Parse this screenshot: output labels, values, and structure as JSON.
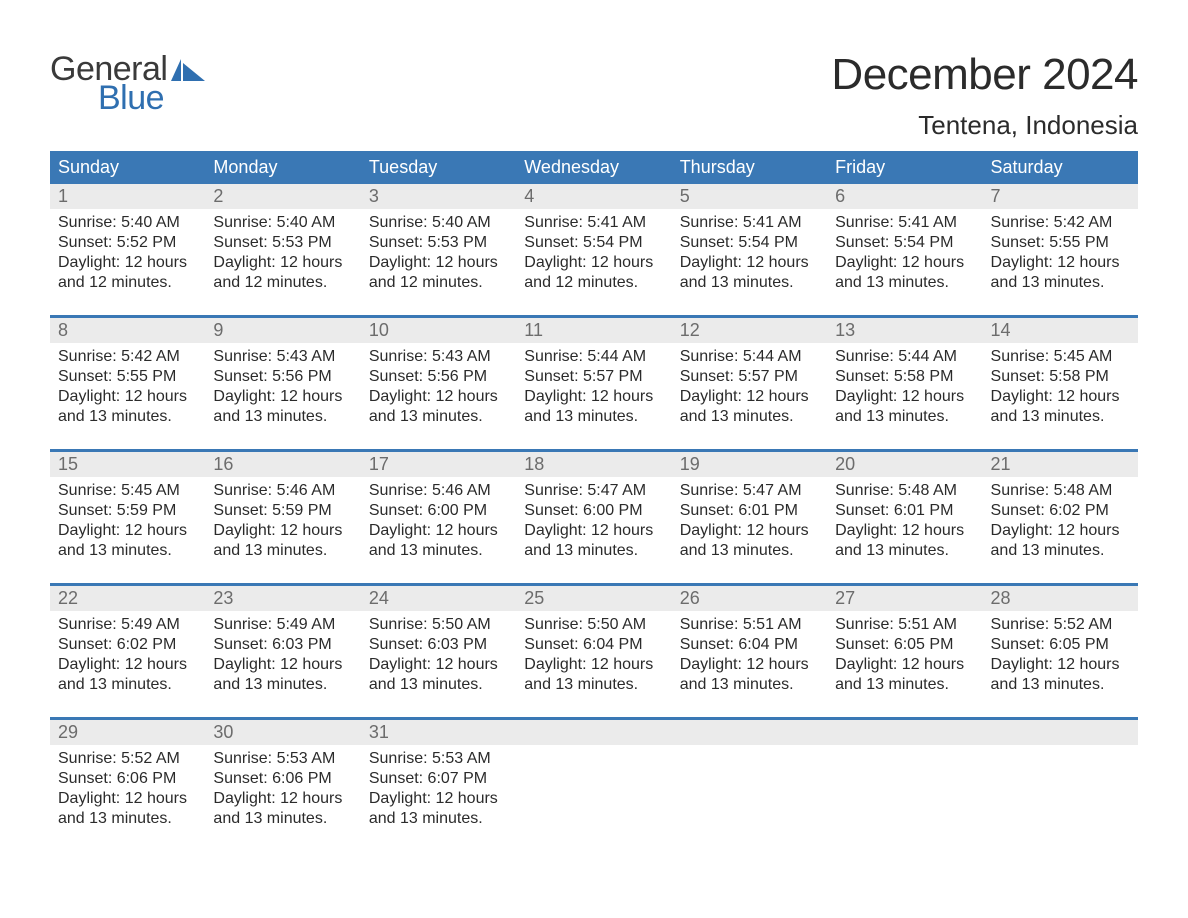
{
  "logo": {
    "word1": "General",
    "word2": "Blue"
  },
  "title": "December 2024",
  "location": "Tentena, Indonesia",
  "colors": {
    "header_bg": "#3a78b5",
    "header_text": "#ffffff",
    "daynum_bg": "#ebebeb",
    "daynum_text": "#6c6c6c",
    "body_text": "#2b2b2b",
    "logo_gray": "#3a3a3a",
    "logo_blue": "#2f6fb0",
    "page_bg": "#ffffff"
  },
  "weekdays": [
    "Sunday",
    "Monday",
    "Tuesday",
    "Wednesday",
    "Thursday",
    "Friday",
    "Saturday"
  ],
  "labels": {
    "sunrise": "Sunrise:",
    "sunset": "Sunset:",
    "daylight": "Daylight:"
  },
  "weeks": [
    [
      {
        "day": "1",
        "sunrise": "5:40 AM",
        "sunset": "5:52 PM",
        "daylight": "12 hours and 12 minutes."
      },
      {
        "day": "2",
        "sunrise": "5:40 AM",
        "sunset": "5:53 PM",
        "daylight": "12 hours and 12 minutes."
      },
      {
        "day": "3",
        "sunrise": "5:40 AM",
        "sunset": "5:53 PM",
        "daylight": "12 hours and 12 minutes."
      },
      {
        "day": "4",
        "sunrise": "5:41 AM",
        "sunset": "5:54 PM",
        "daylight": "12 hours and 12 minutes."
      },
      {
        "day": "5",
        "sunrise": "5:41 AM",
        "sunset": "5:54 PM",
        "daylight": "12 hours and 13 minutes."
      },
      {
        "day": "6",
        "sunrise": "5:41 AM",
        "sunset": "5:54 PM",
        "daylight": "12 hours and 13 minutes."
      },
      {
        "day": "7",
        "sunrise": "5:42 AM",
        "sunset": "5:55 PM",
        "daylight": "12 hours and 13 minutes."
      }
    ],
    [
      {
        "day": "8",
        "sunrise": "5:42 AM",
        "sunset": "5:55 PM",
        "daylight": "12 hours and 13 minutes."
      },
      {
        "day": "9",
        "sunrise": "5:43 AM",
        "sunset": "5:56 PM",
        "daylight": "12 hours and 13 minutes."
      },
      {
        "day": "10",
        "sunrise": "5:43 AM",
        "sunset": "5:56 PM",
        "daylight": "12 hours and 13 minutes."
      },
      {
        "day": "11",
        "sunrise": "5:44 AM",
        "sunset": "5:57 PM",
        "daylight": "12 hours and 13 minutes."
      },
      {
        "day": "12",
        "sunrise": "5:44 AM",
        "sunset": "5:57 PM",
        "daylight": "12 hours and 13 minutes."
      },
      {
        "day": "13",
        "sunrise": "5:44 AM",
        "sunset": "5:58 PM",
        "daylight": "12 hours and 13 minutes."
      },
      {
        "day": "14",
        "sunrise": "5:45 AM",
        "sunset": "5:58 PM",
        "daylight": "12 hours and 13 minutes."
      }
    ],
    [
      {
        "day": "15",
        "sunrise": "5:45 AM",
        "sunset": "5:59 PM",
        "daylight": "12 hours and 13 minutes."
      },
      {
        "day": "16",
        "sunrise": "5:46 AM",
        "sunset": "5:59 PM",
        "daylight": "12 hours and 13 minutes."
      },
      {
        "day": "17",
        "sunrise": "5:46 AM",
        "sunset": "6:00 PM",
        "daylight": "12 hours and 13 minutes."
      },
      {
        "day": "18",
        "sunrise": "5:47 AM",
        "sunset": "6:00 PM",
        "daylight": "12 hours and 13 minutes."
      },
      {
        "day": "19",
        "sunrise": "5:47 AM",
        "sunset": "6:01 PM",
        "daylight": "12 hours and 13 minutes."
      },
      {
        "day": "20",
        "sunrise": "5:48 AM",
        "sunset": "6:01 PM",
        "daylight": "12 hours and 13 minutes."
      },
      {
        "day": "21",
        "sunrise": "5:48 AM",
        "sunset": "6:02 PM",
        "daylight": "12 hours and 13 minutes."
      }
    ],
    [
      {
        "day": "22",
        "sunrise": "5:49 AM",
        "sunset": "6:02 PM",
        "daylight": "12 hours and 13 minutes."
      },
      {
        "day": "23",
        "sunrise": "5:49 AM",
        "sunset": "6:03 PM",
        "daylight": "12 hours and 13 minutes."
      },
      {
        "day": "24",
        "sunrise": "5:50 AM",
        "sunset": "6:03 PM",
        "daylight": "12 hours and 13 minutes."
      },
      {
        "day": "25",
        "sunrise": "5:50 AM",
        "sunset": "6:04 PM",
        "daylight": "12 hours and 13 minutes."
      },
      {
        "day": "26",
        "sunrise": "5:51 AM",
        "sunset": "6:04 PM",
        "daylight": "12 hours and 13 minutes."
      },
      {
        "day": "27",
        "sunrise": "5:51 AM",
        "sunset": "6:05 PM",
        "daylight": "12 hours and 13 minutes."
      },
      {
        "day": "28",
        "sunrise": "5:52 AM",
        "sunset": "6:05 PM",
        "daylight": "12 hours and 13 minutes."
      }
    ],
    [
      {
        "day": "29",
        "sunrise": "5:52 AM",
        "sunset": "6:06 PM",
        "daylight": "12 hours and 13 minutes."
      },
      {
        "day": "30",
        "sunrise": "5:53 AM",
        "sunset": "6:06 PM",
        "daylight": "12 hours and 13 minutes."
      },
      {
        "day": "31",
        "sunrise": "5:53 AM",
        "sunset": "6:07 PM",
        "daylight": "12 hours and 13 minutes."
      },
      null,
      null,
      null,
      null
    ]
  ]
}
